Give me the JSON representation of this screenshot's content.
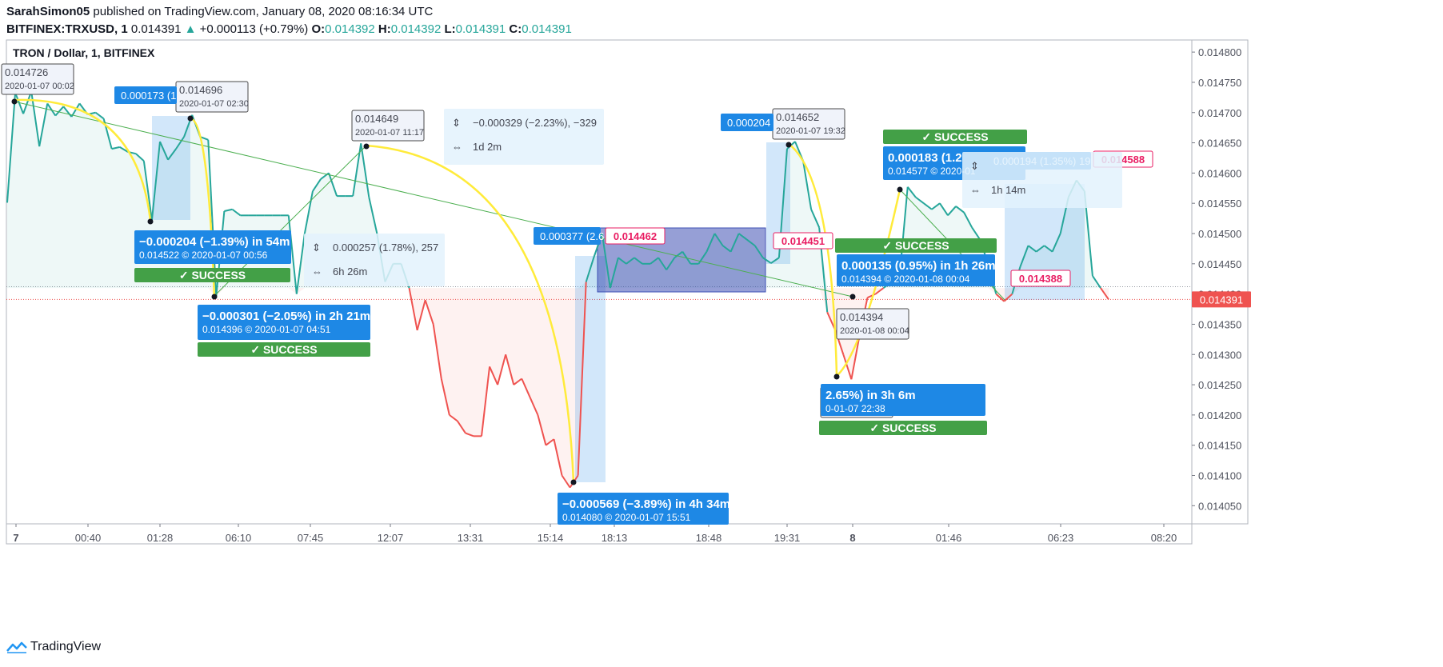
{
  "header": {
    "publisher": "SarahSimon05",
    "published_text": "published on TradingView.com, January 08, 2020 08:16:34 UTC",
    "symbol": "BITFINEX:TRXUSD, 1",
    "last": "0.014391",
    "change": "+0.000113 (+0.79%)",
    "o_label": "O:",
    "o": "0.014392",
    "h_label": "H:",
    "h": "0.014392",
    "l_label": "L:",
    "l": "0.014391",
    "c_label": "C:",
    "c": "0.014391"
  },
  "footer": {
    "brand": "TradingView"
  },
  "colors": {
    "up": "#26a69a",
    "down": "#ef5350",
    "blue": "#1e88e5",
    "green": "#43a047",
    "yellow": "#ffeb3b",
    "pink": "#e91e63",
    "lightgreen": "#4caf50"
  },
  "chart_data": {
    "type": "line",
    "title": "TRON / Dollar, 1, BITFINEX",
    "ylim": [
      0.01402,
      0.01482
    ],
    "y_ticks": [
      "0.014800",
      "0.014750",
      "0.014700",
      "0.014650",
      "0.014600",
      "0.014550",
      "0.014500",
      "0.014450",
      "0.014400",
      "0.014350",
      "0.014300",
      "0.014250",
      "0.014200",
      "0.014150",
      "0.014100",
      "0.014050"
    ],
    "x_ticks": [
      "7",
      "00:40",
      "01:28",
      "06:10",
      "07:45",
      "12:07",
      "13:31",
      "15:14",
      "18:13",
      "18:48",
      "19:31",
      "8",
      "01:46",
      "06:23",
      "08:20"
    ],
    "current_price": "0.014391",
    "series": [
      {
        "values": [
          0.014551,
          0.014733,
          0.014698,
          0.014735,
          0.014644,
          0.014715,
          0.014695,
          0.01471,
          0.014693,
          0.014715,
          0.014697,
          0.0147,
          0.01469,
          0.01464,
          0.014643,
          0.014635,
          0.014632,
          0.01462,
          0.014522,
          0.014652,
          0.014622,
          0.01464,
          0.01466,
          0.014696,
          0.01466,
          0.014655,
          0.014396,
          0.014537,
          0.01454,
          0.01453,
          0.01453,
          0.01453,
          0.01453,
          0.01453,
          0.01453,
          0.01453,
          0.0144,
          0.0145,
          0.01457,
          0.01459,
          0.0146,
          0.014562,
          0.014562,
          0.014562,
          0.014649,
          0.01456,
          0.0145,
          0.01442,
          0.01445,
          0.01445,
          0.01441,
          0.01434,
          0.01439,
          0.01435,
          0.01426,
          0.0142,
          0.01419,
          0.01417,
          0.014165,
          0.014165,
          0.01428,
          0.01425,
          0.0143,
          0.01425,
          0.01426,
          0.01423,
          0.0142,
          0.01415,
          0.01416,
          0.0141,
          0.01408,
          0.0141,
          0.01442,
          0.014462,
          0.0145,
          0.01441,
          0.01446,
          0.01445,
          0.01446,
          0.01445,
          0.01445,
          0.01446,
          0.01444,
          0.01446,
          0.01447,
          0.01445,
          0.01445,
          0.01447,
          0.0145,
          0.01448,
          0.01447,
          0.0145,
          0.01449,
          0.01448,
          0.01446,
          0.014451,
          0.01446,
          0.01464,
          0.014652,
          0.01462,
          0.01454,
          0.01451,
          0.01437,
          0.01434,
          0.0143,
          0.014259,
          0.01433,
          0.014394,
          0.0144,
          0.01441,
          0.01442,
          0.01443,
          0.014577,
          0.01456,
          0.01455,
          0.01454,
          0.01455,
          0.01453,
          0.014545,
          0.014535,
          0.01451,
          0.01449,
          0.01445,
          0.0144,
          0.014388,
          0.0144,
          0.014445,
          0.01448,
          0.01447,
          0.01448,
          0.01447,
          0.0145,
          0.01456,
          0.014588,
          0.01457,
          0.01443,
          0.01441,
          0.014391
        ],
        "up_color": "#26a69a",
        "down_color": "#ef5350"
      }
    ],
    "annotations": {
      "start_price": {
        "price": "0.014726",
        "date": "2020-01-07 00:02"
      },
      "labels": [
        {
          "price": "0.014696",
          "date": "2020-01-07 02:30"
        },
        {
          "price": "0.014649",
          "date": "2020-01-07 11:17"
        },
        {
          "price": "0.014652",
          "date": "2020-01-07 19:32"
        },
        {
          "price": "0.014394",
          "date": "2020-01-08 00:04"
        },
        {
          "price": "0.014259",
          "date": "2020-01-07 22:38"
        }
      ],
      "pink_labels": [
        "0.014462",
        "0.014451",
        "0.014388",
        "0.014588"
      ],
      "callouts": [
        {
          "main": "−0.000204 (−1.39%) in 54m",
          "sub": "0.014522 © 2020-01-07  00:56"
        },
        {
          "main": "−0.000301 (−2.05%) in 2h 21m",
          "sub": "0.014396 © 2020-01-07  04:51"
        },
        {
          "main": "−0.000569 (−3.89%) in 4h 34m",
          "sub": "0.014080 © 2020-01-07  15:51"
        },
        {
          "main": "0.000135 (0.95%) in 1h 26m",
          "sub": "0.014394 © 2020-01-08  00:04"
        },
        {
          "main": "2.65%) in 3h 6m",
          "sub": "0-01-07  22:38"
        },
        {
          "main": "0.000183 (1.2",
          "sub": "0.014577 © 2020-01"
        }
      ],
      "tags": [
        "0.000173 (1",
        "0.000377 (2.6",
        "0.000204",
        "0.000194 (1.35%) 19"
      ],
      "success": "✓ SUCCESS",
      "measure_boxes": [
        {
          "line1": "0.000257 (1.78%), 257",
          "line2": "6h 26m"
        },
        {
          "line1": "−0.000329 (−2.23%), −329",
          "line2": "1d 2m"
        },
        {
          "line1": "",
          "line2": "1h 14m"
        }
      ]
    }
  }
}
